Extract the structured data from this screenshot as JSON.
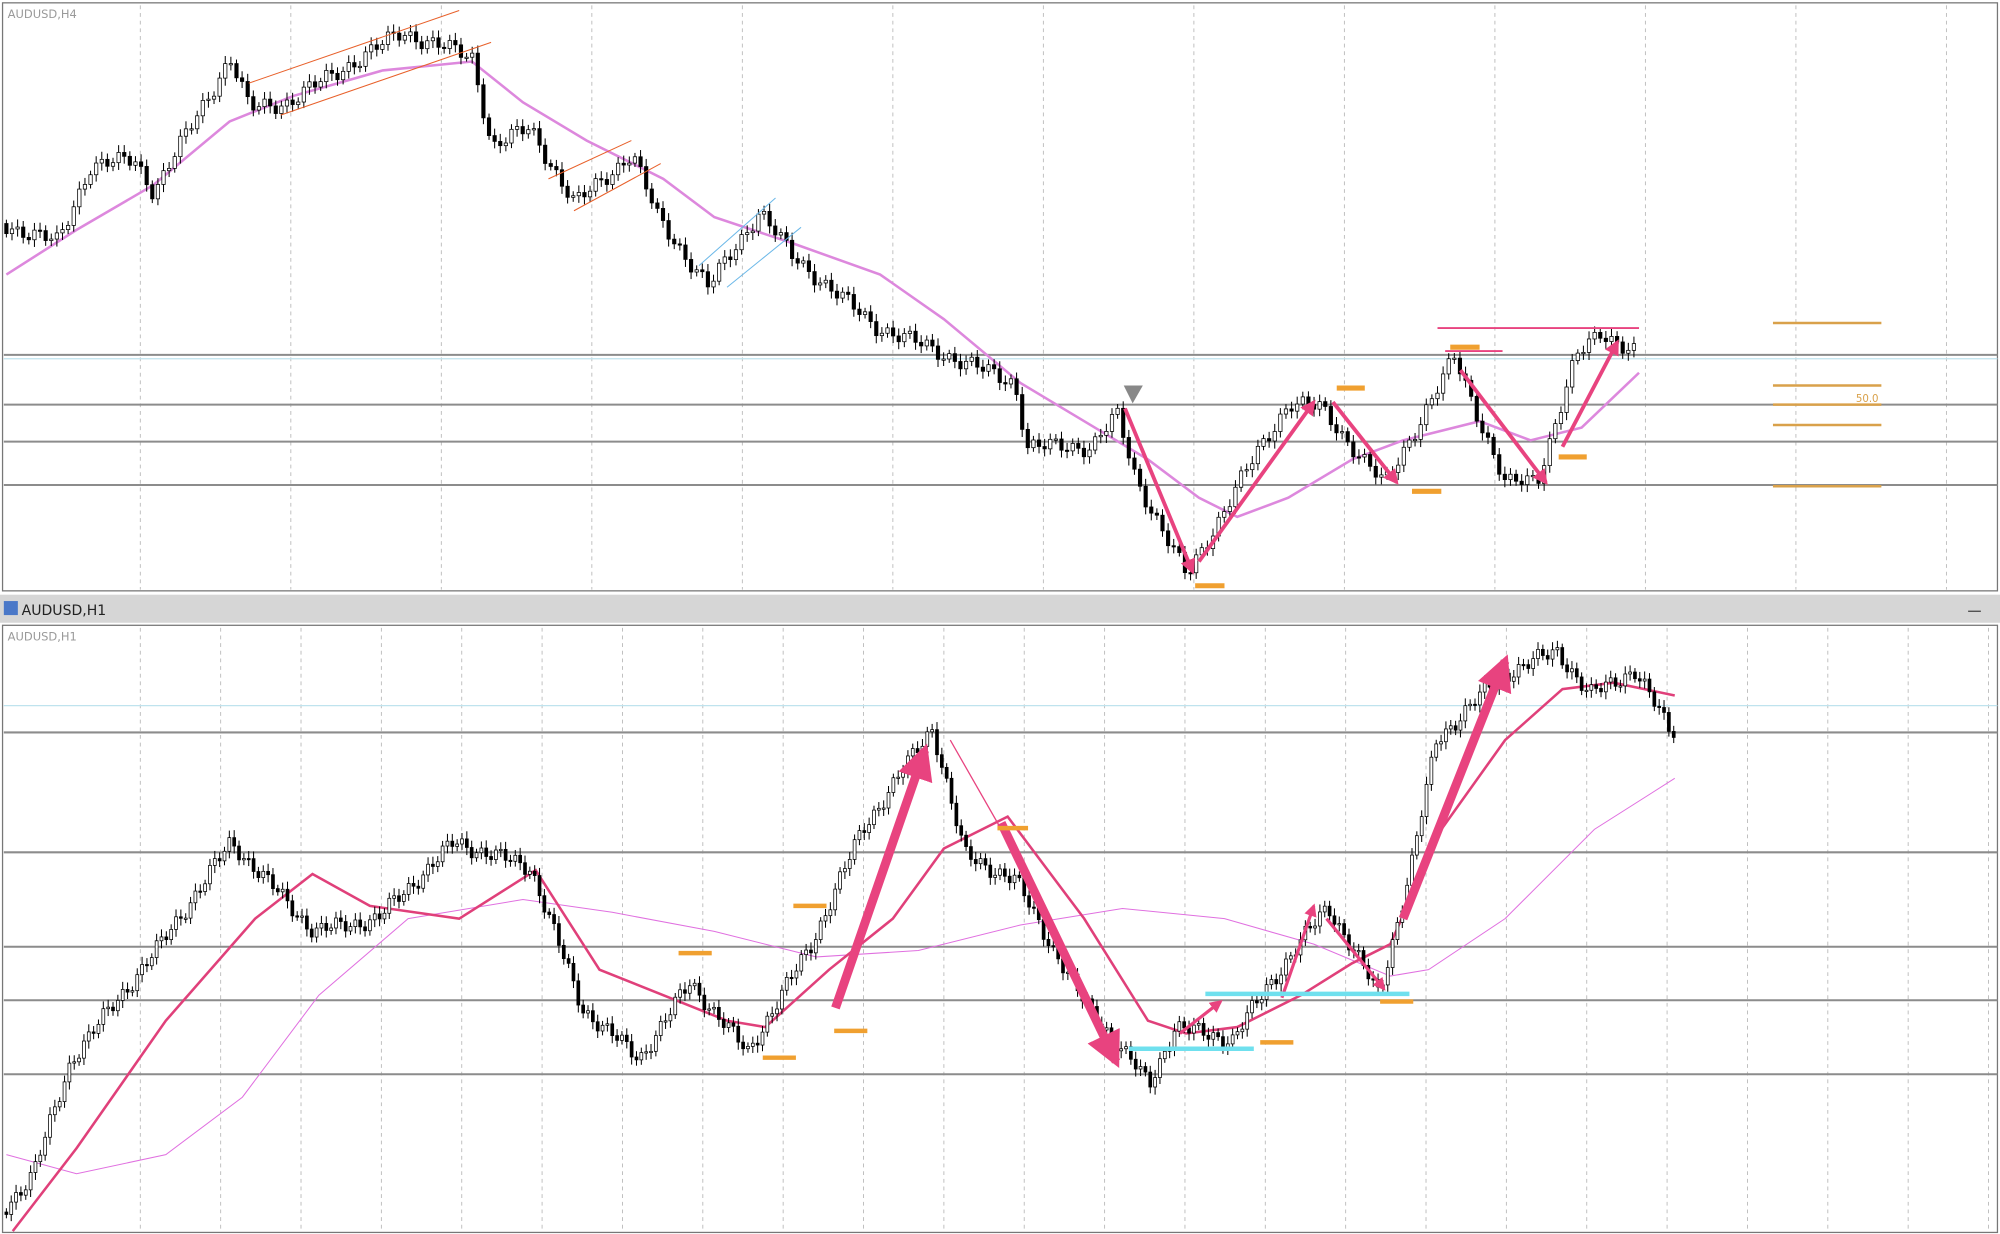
{
  "windows": [
    {
      "label": "AUDUSD,H4",
      "fibo_label": "50.0"
    },
    {
      "title": "AUDUSD,H1",
      "label": "AUDUSD,H1"
    }
  ]
}
